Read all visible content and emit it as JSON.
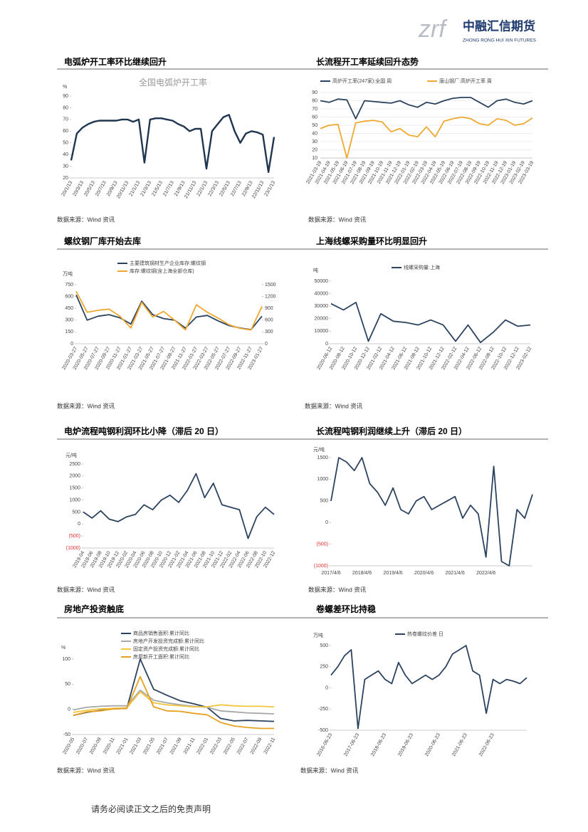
{
  "header": {
    "logo_mark": "zrf",
    "logo_text": "中融汇信期货",
    "logo_subtitle": "ZHONG RONG HUI XIN FUTURES"
  },
  "footer": "请务必阅读正文之后的免责声明",
  "chart_data": [
    {
      "type": "line",
      "heading": "电弧炉开工率环比继续回升",
      "title": "全国电弧炉开工率",
      "unit": "%",
      "source": "数据来源：Wind 资讯",
      "categories": [
        "20/1/13",
        null,
        "20/3/13",
        null,
        "20/5/13",
        null,
        "20/7/13",
        null,
        "20/9/13",
        null,
        "20/11/13",
        null,
        "21/1/13",
        null,
        "21/3/13",
        null,
        "21/5/13",
        null,
        "21/7/13",
        null,
        "21/9/13",
        null,
        "21/11/13",
        null,
        "22/1/13",
        null,
        "22/3/13",
        null,
        "22/5/13",
        null,
        "22/7/13",
        null,
        "22/9/13",
        null,
        "22/11/13",
        null,
        "23/1/13"
      ],
      "values": [
        35,
        58,
        63,
        66,
        68,
        69,
        69,
        69,
        69,
        70,
        70,
        68,
        70,
        33,
        70,
        71,
        71,
        70,
        69,
        66,
        64,
        60,
        62,
        62,
        28,
        60,
        66,
        72,
        74,
        60,
        50,
        58,
        60,
        59,
        57,
        25,
        55
      ],
      "color": "#1f3550",
      "ylim": [
        20,
        90
      ],
      "yticks": [
        20,
        30,
        40,
        50,
        60,
        70,
        80,
        90
      ],
      "grid": false
    },
    {
      "type": "line",
      "heading": "长流程开工率延续回升态势",
      "source": "数据来源：Wind 资讯",
      "categories": [
        "2021-03-19",
        "2021-04-19",
        "2021-05-19",
        "2021-06-19",
        "2021-07-19",
        "2021-08-19",
        "2021-09-19",
        "2021-10-19",
        "2021-11-19",
        "2021-12-19",
        "2022-01-19",
        "2022-02-19",
        "2022-03-19",
        "2022-04-19",
        "2022-05-19",
        "2022-06-19",
        "2022-07-19",
        "2022-08-19",
        "2022-09-19",
        "2022-10-19",
        "2022-11-19",
        "2022-12-19",
        "2023-01-19",
        "2023-02-19",
        "2023-03-19"
      ],
      "series": [
        {
          "name": "高炉开工率(247家):全国 周",
          "color": "#2c4360",
          "values": [
            80,
            78,
            82,
            81,
            58,
            80,
            79,
            78,
            77,
            80,
            75,
            72,
            78,
            76,
            80,
            83,
            84,
            84,
            78,
            72,
            80,
            82,
            78,
            76,
            80
          ]
        },
        {
          "name": "唐山钢厂:高炉开工率 周",
          "color": "#f0a830",
          "values": [
            46,
            50,
            51,
            10,
            53,
            55,
            56,
            54,
            42,
            46,
            38,
            36,
            48,
            36,
            55,
            58,
            60,
            58,
            52,
            50,
            58,
            56,
            50,
            52,
            59
          ]
        }
      ],
      "ylim": [
        10,
        90
      ],
      "yticks": [
        10,
        20,
        30,
        40,
        50,
        60,
        70,
        80,
        90
      ],
      "grid": true
    },
    {
      "type": "line",
      "heading": "螺纹钢厂库开始去库",
      "unit": "万吨",
      "source": "数据来源：Wind 资讯",
      "categories": [
        "2020-03-27",
        "2020-05-27",
        "2020-07-27",
        "2020-09-27",
        "2020-11-27",
        "2021-01-27",
        "2021-03-27",
        "2021-05-27",
        "2021-07-27",
        "2021-09-27",
        "2021-11-27",
        "2022-01-27",
        "2022-03-27",
        "2022-05-27",
        "2022-07-27",
        "2022-09-27",
        "2022-11-27",
        "2023-01-27"
      ],
      "series": [
        {
          "name": "主要建筑钢材生产企业库存:螺纹钢",
          "color": "#2c4360",
          "values": [
            620,
            300,
            350,
            370,
            330,
            250,
            540,
            370,
            320,
            300,
            200,
            340,
            360,
            290,
            230,
            200,
            180,
            350
          ]
        },
        {
          "name": "库存:螺纹钢(含上海全部仓库)",
          "color": "#f0a830",
          "axis": "y2",
          "values": [
            1330,
            800,
            850,
            880,
            700,
            400,
            1050,
            680,
            820,
            600,
            350,
            990,
            800,
            650,
            480,
            390,
            350,
            950
          ]
        }
      ],
      "ylim": [
        0,
        750
      ],
      "yticks": [
        0,
        150,
        300,
        450,
        600,
        750
      ],
      "y2lim": [
        0,
        1500
      ],
      "y2ticks": [
        0,
        300,
        600,
        900,
        1200,
        1500
      ],
      "grid": false
    },
    {
      "type": "line",
      "heading": "上海线螺采购量环比明显回升",
      "unit": "吨",
      "source": "数据来源：Wind 资讯",
      "categories": [
        "2020-06-12",
        "2020-08-12",
        "2020-10-12",
        "2020-12-12",
        "2021-02-12",
        "2021-04-12",
        "2021-06-12",
        "2021-08-12",
        "2021-10-12",
        "2021-12-12",
        "2022-02-12",
        "2022-04-12",
        "2022-06-12",
        "2022-08-12",
        "2022-10-12",
        "2022-12-12",
        "2023-02-12"
      ],
      "series": [
        {
          "name": "线螺采购量:上海",
          "color": "#2c4360",
          "values": [
            32000,
            27000,
            33000,
            2000,
            24000,
            18000,
            17000,
            15000,
            19000,
            15000,
            2000,
            15000,
            1000,
            9000,
            19000,
            14000,
            15000
          ]
        }
      ],
      "ylim": [
        0,
        50000
      ],
      "yticks": [
        0,
        10000,
        20000,
        30000,
        40000,
        50000
      ],
      "grid": false
    },
    {
      "type": "line",
      "heading": "电炉流程吨钢利润环比小降（滞后 20 日）",
      "unit": "元/吨",
      "source": "数据来源：Wind 资讯",
      "categories": [
        "2019-04",
        "2019-06",
        "2019-08",
        "2019-10",
        "2019-12",
        "2020-02",
        "2020-04",
        "2020-06",
        "2020-08",
        "2020-10",
        "2020-12",
        "2021-02",
        "2021-04",
        "2021-06",
        "2021-08",
        "2021-10",
        "2021-12",
        "2022-02",
        "2022-04",
        "2022-06",
        "2022-08",
        "2022-10",
        "2022-12"
      ],
      "values": [
        500,
        250,
        550,
        200,
        100,
        300,
        400,
        800,
        600,
        1000,
        1200,
        900,
        1400,
        2100,
        1100,
        1700,
        800,
        700,
        600,
        -600,
        300,
        700,
        400
      ],
      "color": "#2c4360",
      "ylim": [
        -1000,
        2500
      ],
      "yticks": [
        {
          "value": -1000,
          "label": "(1000)"
        },
        {
          "value": -500,
          "label": "(500)"
        },
        0,
        500,
        1000,
        1500,
        2000,
        2500
      ],
      "negative_tick_color": "#e03030",
      "grid": false
    },
    {
      "type": "line",
      "heading": "长流程吨钢利润继续上升（滞后 20 日）",
      "unit": "元/吨",
      "source": "数据来源：Wind 资讯",
      "categories": [
        "2017/4/6",
        null,
        null,
        null,
        "2018/4/6",
        null,
        null,
        null,
        "2019/4/6",
        null,
        null,
        null,
        "2020/4/6",
        null,
        null,
        null,
        "2021/4/6",
        null,
        null,
        null,
        "2022/4/6",
        null,
        null,
        null,
        null,
        null,
        null
      ],
      "values": [
        500,
        1500,
        1400,
        1200,
        1500,
        900,
        700,
        400,
        800,
        300,
        200,
        500,
        600,
        300,
        400,
        500,
        600,
        100,
        400,
        200,
        -800,
        1300,
        -900,
        -1000,
        300,
        100,
        650
      ],
      "color": "#2c4360",
      "ylim": [
        -1000,
        1500
      ],
      "horizontal_labels": true,
      "yticks": [
        {
          "value": -1000,
          "label": "(1000)"
        },
        {
          "value": -500,
          "label": "(500)"
        },
        0,
        500,
        1000,
        1500
      ],
      "negative_tick_color": "#e03030",
      "grid": false
    },
    {
      "type": "line",
      "heading": "房地产投资触底",
      "unit": "%",
      "source": "数据来源：Wind 资讯",
      "categories": [
        "2020-05",
        "2020-07",
        "2020-09",
        "2020-11",
        "2021-01",
        "2021-03",
        "2021-05",
        "2021-07",
        "2021-09",
        "2021-11",
        "2022-01",
        "2022-03",
        "2022-05",
        "2022-07",
        "2022-09",
        "2022-11"
      ],
      "series": [
        {
          "name": "商品房销售面积:累计同比",
          "color": "#2c4360",
          "values": [
            -12,
            -6,
            -2,
            1,
            2,
            100,
            40,
            28,
            17,
            11,
            4,
            -18,
            -23,
            -22,
            -23,
            -24
          ]
        },
        {
          "name": "房地产开发投资完成额:累计同比",
          "color": "#a8a8a8",
          "values": [
            -1,
            4,
            6,
            7,
            7,
            38,
            18,
            13,
            9,
            6,
            4,
            -3,
            -5,
            -7,
            -8,
            -9
          ]
        },
        {
          "name": "固定资产投资完成额:累计同比",
          "color": "#f2c53d",
          "values": [
            -6,
            -2,
            1,
            2,
            3,
            35,
            13,
            9,
            7,
            5,
            5,
            9,
            7,
            6,
            6,
            5
          ]
        },
        {
          "name": "房屋新开工面积:累计同比",
          "color": "#e8a020",
          "values": [
            -12,
            -5,
            -3,
            1,
            2,
            65,
            5,
            -3,
            -4,
            -8,
            -11,
            -26,
            -33,
            -36,
            -38,
            -38
          ]
        }
      ],
      "ylim": [
        -50,
        100
      ],
      "yticks": [
        -50,
        0,
        50,
        100
      ],
      "grid": false
    },
    {
      "type": "line",
      "heading": "卷螺差环比持稳",
      "unit": "万吨",
      "source": "数据来源：Wind 资讯",
      "categories": [
        "2016-06-23",
        null,
        null,
        null,
        "2017-06-23",
        null,
        null,
        null,
        "2018-06-23",
        null,
        null,
        null,
        "2019-06-23",
        null,
        null,
        null,
        "2020-06-23",
        null,
        null,
        null,
        "2021-06-23",
        null,
        null,
        null,
        "2022-06-23",
        null,
        null,
        null,
        null,
        null
      ],
      "series": [
        {
          "name": "热卷螺纹价差 日",
          "color": "#2c4360",
          "values": [
            150,
            250,
            380,
            450,
            -480,
            100,
            150,
            200,
            100,
            50,
            300,
            150,
            50,
            100,
            150,
            100,
            150,
            250,
            400,
            450,
            500,
            200,
            150,
            -300,
            100,
            50,
            100,
            80,
            50,
            120
          ]
        }
      ],
      "ylim": [
        -500,
        500
      ],
      "yticks": [
        -500,
        -250,
        0,
        250,
        500
      ],
      "grid": false
    }
  ]
}
